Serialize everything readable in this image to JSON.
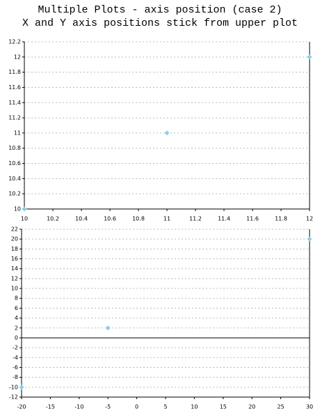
{
  "title": "Multiple Plots - axis position (case 2)",
  "subtitle": "X and Y axis positions stick from upper plot",
  "chart_data": [
    {
      "type": "scatter",
      "x": [
        10,
        11,
        12
      ],
      "values": [
        10,
        11,
        12
      ],
      "color": "#87ceeb",
      "xlim": [
        10,
        12
      ],
      "xticks": [
        10,
        10.2,
        10.4,
        10.6,
        10.8,
        11,
        11.2,
        11.4,
        11.6,
        11.8,
        12
      ],
      "ylim": [
        10,
        12.2
      ],
      "yticks": [
        10,
        10.2,
        10.4,
        10.6,
        10.8,
        11,
        11.2,
        11.4,
        11.6,
        11.8,
        12,
        12.2
      ],
      "grid": true
    },
    {
      "type": "scatter",
      "x": [
        -20,
        -5,
        30
      ],
      "values": [
        -10,
        2,
        20
      ],
      "color": "#87ceeb",
      "xlim": [
        -20,
        30
      ],
      "xticks": [
        -20,
        -15,
        -10,
        -5,
        0,
        5,
        10,
        15,
        20,
        25,
        30
      ],
      "ylim": [
        -12,
        22
      ],
      "yticks": [
        -12,
        -10,
        -8,
        -6,
        -4,
        -2,
        0,
        2,
        4,
        6,
        8,
        10,
        12,
        14,
        16,
        18,
        20,
        22
      ],
      "grid": true,
      "xaxis_position": 0
    }
  ]
}
